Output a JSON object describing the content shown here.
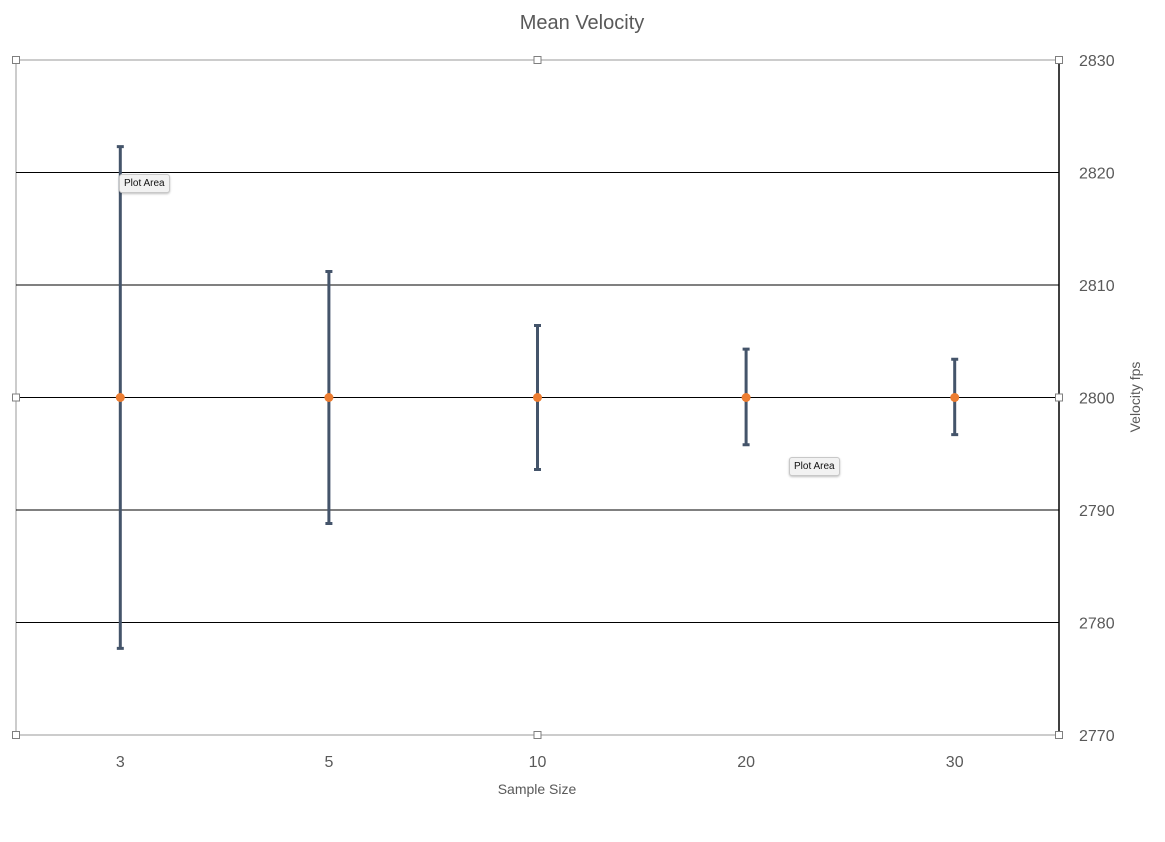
{
  "chart_data": {
    "type": "scatter",
    "title": "Mean Velocity",
    "xlabel": "Sample Size",
    "ylabel": "Velocity fps",
    "categories": [
      "3",
      "5",
      "10",
      "20",
      "30"
    ],
    "series": [
      {
        "values": [
          2800,
          2800,
          2800,
          2800,
          2800
        ],
        "error_plus": [
          22.3,
          11.2,
          6.4,
          4.3,
          3.4
        ],
        "error_minus": [
          22.3,
          11.2,
          6.4,
          4.2,
          3.3
        ]
      }
    ],
    "ylim": [
      2770,
      2830
    ],
    "yticks": [
      2770,
      2780,
      2790,
      2800,
      2810,
      2820,
      2830
    ],
    "y_axis_side": "right",
    "grid": true,
    "legend": "none",
    "colors": {
      "marker": "#ed7d31",
      "error_bar": "#44546a",
      "grid": "#000000",
      "text": "#595959"
    }
  },
  "tooltips": [
    "Plot Area",
    "Plot Area"
  ]
}
